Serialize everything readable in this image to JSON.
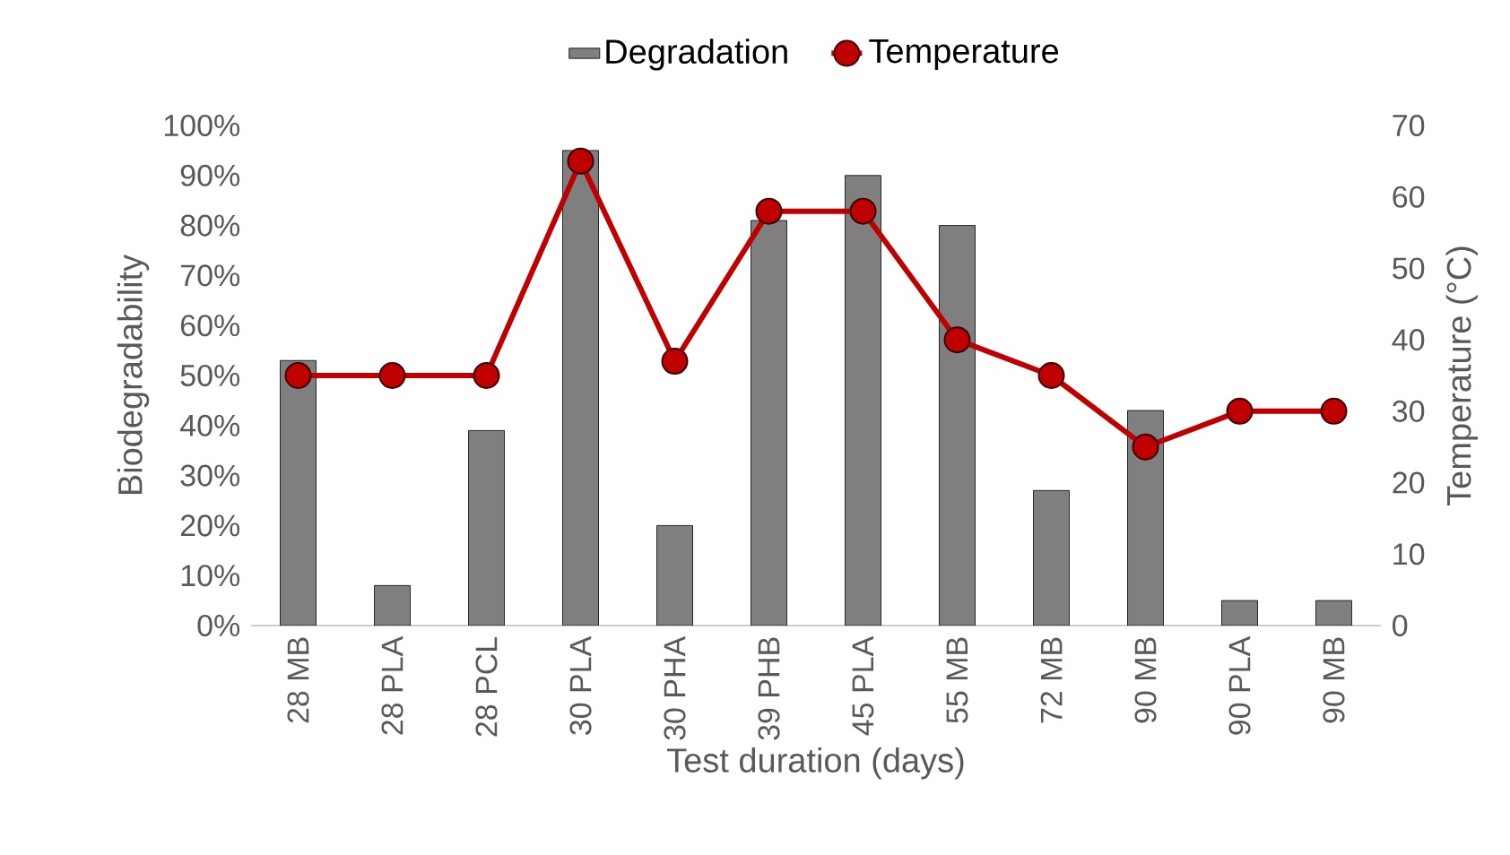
{
  "chart_data": {
    "type": "bar",
    "xlabel": "Test duration (days)",
    "ylabel": "Biodegradability",
    "y2label": "Temperature (°C)",
    "categories": [
      "28 MB",
      "28 PLA",
      "28 PCL",
      "30 PLA",
      "30 PHA",
      "39 PHB",
      "45 PLA",
      "55 MB",
      "72 MB",
      "90 MB",
      "90 PLA",
      "90 MB"
    ],
    "series": [
      {
        "name": "Degradation",
        "color": "#7f7f7f",
        "values": [
          53,
          8,
          39,
          95,
          20,
          81,
          90,
          80,
          27,
          43,
          5,
          5
        ]
      },
      {
        "name": "Temperature",
        "type": "line",
        "axis": "y2",
        "color": "#c00000",
        "values": [
          35,
          35,
          35,
          65,
          37,
          58,
          58,
          40,
          35,
          25,
          30,
          30
        ]
      }
    ],
    "ylim": [
      0,
      100
    ],
    "yticks": [
      {
        "value": 0,
        "label": "0%"
      },
      {
        "value": 10,
        "label": "10%"
      },
      {
        "value": 20,
        "label": "20%"
      },
      {
        "value": 30,
        "label": "30%"
      },
      {
        "value": 40,
        "label": "40%"
      },
      {
        "value": 50,
        "label": "50%"
      },
      {
        "value": 60,
        "label": "60%"
      },
      {
        "value": 70,
        "label": "70%"
      },
      {
        "value": 80,
        "label": "80%"
      },
      {
        "value": 90,
        "label": "90%"
      },
      {
        "value": 100,
        "label": "100%"
      }
    ],
    "y2lim": [
      0,
      70
    ],
    "y2ticks": [
      0,
      10,
      20,
      30,
      40,
      50,
      60,
      70
    ],
    "legend": "top",
    "grid": false,
    "marker": "circle"
  }
}
